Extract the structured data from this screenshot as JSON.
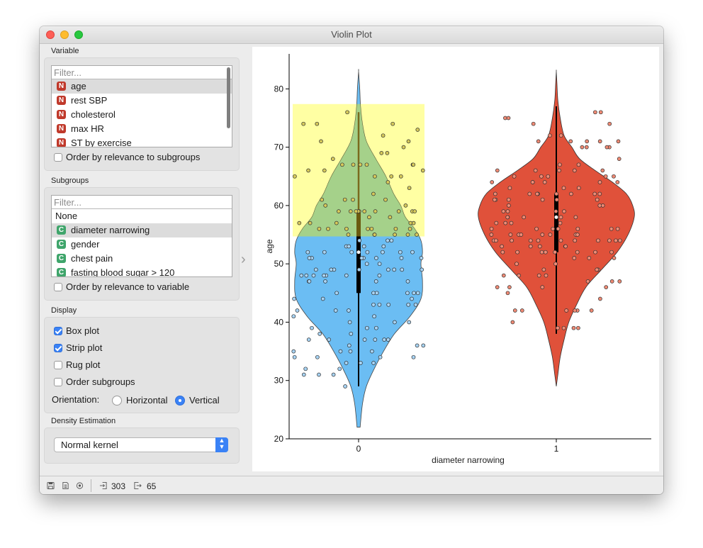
{
  "window": {
    "title": "Violin Plot"
  },
  "variable": {
    "label": "Variable",
    "filter_placeholder": "Filter...",
    "items": [
      {
        "name": "age",
        "type": "N"
      },
      {
        "name": "rest SBP",
        "type": "N"
      },
      {
        "name": "cholesterol",
        "type": "N"
      },
      {
        "name": "max HR",
        "type": "N"
      },
      {
        "name": "ST by exercise",
        "type": "N"
      }
    ],
    "selected": "age",
    "order_label": "Order by relevance to subgroups"
  },
  "subgroups": {
    "label": "Subgroups",
    "filter_placeholder": "Filter...",
    "none_label": "None",
    "items": [
      {
        "name": "diameter narrowing",
        "type": "C"
      },
      {
        "name": "gender",
        "type": "C"
      },
      {
        "name": "chest pain",
        "type": "C"
      },
      {
        "name": "fasting blood sugar > 120",
        "type": "C"
      }
    ],
    "selected": "diameter narrowing",
    "order_label": "Order by relevance to variable"
  },
  "display": {
    "label": "Display",
    "box_plot": {
      "label": "Box plot",
      "checked": true
    },
    "strip_plot": {
      "label": "Strip plot",
      "checked": true
    },
    "rug_plot": {
      "label": "Rug plot",
      "checked": false
    },
    "order_subgroups": {
      "label": "Order subgroups",
      "checked": false
    },
    "orientation_label": "Orientation:",
    "horizontal_label": "Horizontal",
    "vertical_label": "Vertical",
    "orientation": "Vertical"
  },
  "density": {
    "label": "Density Estimation",
    "kernel": "Normal kernel"
  },
  "status": {
    "input_count": "303",
    "output_count": "65"
  },
  "colors": {
    "group0": "#5cb6f2",
    "group1": "#e0513a",
    "selection": "#ffff66",
    "accent": "#3a82f6"
  },
  "chart_data": {
    "type": "violin",
    "xlabel": "diameter narrowing",
    "ylabel": "age",
    "ylim": [
      20,
      86
    ],
    "yticks": [
      20,
      30,
      40,
      50,
      60,
      70,
      80
    ],
    "categories": [
      "0",
      "1"
    ],
    "selection": {
      "category": "0",
      "y_range": [
        54.7,
        77.4
      ]
    },
    "series": [
      {
        "category": "0",
        "min": 29,
        "q1": 45,
        "median": 52,
        "q3": 59,
        "max": 76,
        "density_ymin": 22,
        "density_ymax": 83,
        "density": [
          [
            22,
            0.02
          ],
          [
            26,
            0.05
          ],
          [
            29,
            0.1
          ],
          [
            32,
            0.2
          ],
          [
            35,
            0.32
          ],
          [
            38,
            0.46
          ],
          [
            41,
            0.66
          ],
          [
            44,
            0.8
          ],
          [
            47,
            0.82
          ],
          [
            50,
            0.8
          ],
          [
            52,
            0.82
          ],
          [
            54,
            0.8
          ],
          [
            56,
            0.72
          ],
          [
            58,
            0.6
          ],
          [
            60,
            0.54
          ],
          [
            62,
            0.45
          ],
          [
            65,
            0.35
          ],
          [
            68,
            0.22
          ],
          [
            71,
            0.1
          ],
          [
            74,
            0.05
          ],
          [
            77,
            0.025
          ],
          [
            80,
            0.015
          ],
          [
            83,
            0.0
          ]
        ]
      },
      {
        "category": "1",
        "min": 38,
        "q1": 52,
        "median": 58,
        "q3": 62,
        "max": 77,
        "density_ymin": 29,
        "density_ymax": 83,
        "density": [
          [
            29,
            0.0
          ],
          [
            31,
            0.02
          ],
          [
            34,
            0.05
          ],
          [
            37,
            0.1
          ],
          [
            40,
            0.16
          ],
          [
            43,
            0.26
          ],
          [
            46,
            0.38
          ],
          [
            49,
            0.58
          ],
          [
            52,
            0.78
          ],
          [
            55,
            0.92
          ],
          [
            58,
            1.0
          ],
          [
            60,
            0.98
          ],
          [
            62,
            0.9
          ],
          [
            64,
            0.72
          ],
          [
            66,
            0.5
          ],
          [
            68,
            0.3
          ],
          [
            70,
            0.2
          ],
          [
            72,
            0.1
          ],
          [
            75,
            0.05
          ],
          [
            78,
            0.02
          ],
          [
            81,
            0.008
          ],
          [
            83,
            0.0
          ]
        ]
      }
    ]
  }
}
